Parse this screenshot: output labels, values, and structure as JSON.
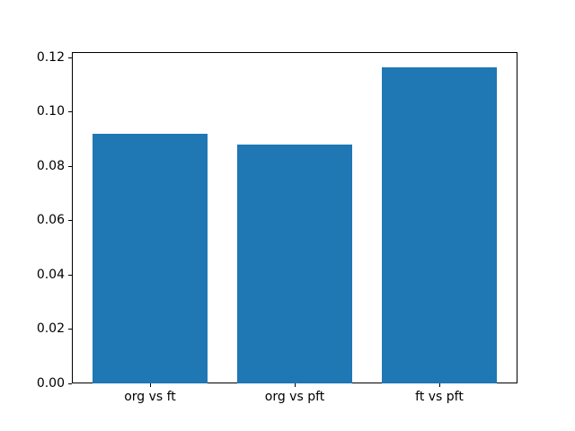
{
  "chart_data": {
    "type": "bar",
    "title": "",
    "xlabel": "",
    "ylabel": "",
    "categories": [
      "org vs ft",
      "org vs pft",
      "ft vs pft"
    ],
    "values": [
      0.0917,
      0.0878,
      0.1161
    ],
    "ylim": [
      0,
      0.1218
    ],
    "yticks": [
      0.0,
      0.02,
      0.04,
      0.06,
      0.08,
      0.1,
      0.12
    ],
    "ytick_labels": [
      "0.00",
      "0.02",
      "0.04",
      "0.06",
      "0.08",
      "0.10",
      "0.12"
    ],
    "bar_color": "#1f77b4",
    "bar_width_fraction": 0.8,
    "grid": false,
    "legend": null,
    "axis_color": "#000000",
    "text_color": "#000000",
    "background_color": "#ffffff"
  }
}
